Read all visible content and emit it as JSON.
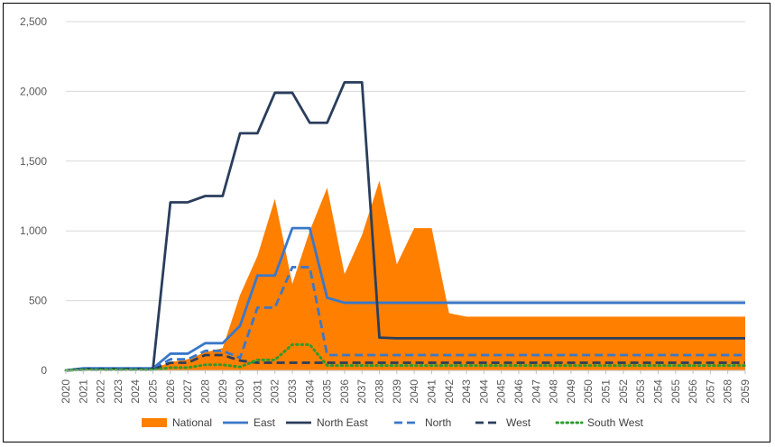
{
  "chart_data": {
    "type": "line",
    "title": "",
    "xlabel": "",
    "ylabel": "",
    "ylim": [
      0,
      2500
    ],
    "y_ticks": [
      0,
      500,
      1000,
      1500,
      2000,
      2500
    ],
    "y_tick_labels": [
      "0",
      "500",
      "1,000",
      "1,500",
      "2,000",
      "2,500"
    ],
    "grid": "horizontal",
    "legend_position": "bottom",
    "x": [
      2020,
      2021,
      2022,
      2023,
      2024,
      2025,
      2026,
      2027,
      2028,
      2029,
      2030,
      2031,
      2032,
      2033,
      2034,
      2035,
      2036,
      2037,
      2038,
      2039,
      2040,
      2041,
      2042,
      2043,
      2044,
      2045,
      2046,
      2047,
      2048,
      2049,
      2050,
      2051,
      2052,
      2053,
      2054,
      2055,
      2056,
      2057,
      2058,
      2059
    ],
    "series": [
      {
        "name": "National",
        "style": "area",
        "color": "#FF7F00",
        "values": [
          0,
          10,
          10,
          10,
          10,
          10,
          60,
          80,
          130,
          160,
          540,
          820,
          1230,
          620,
          1000,
          1310,
          690,
          970,
          1360,
          760,
          1020,
          1020,
          410,
          385,
          385,
          385,
          385,
          385,
          385,
          385,
          385,
          385,
          385,
          385,
          385,
          385,
          385,
          385,
          385,
          385
        ]
      },
      {
        "name": "East",
        "style": "solid",
        "color": "#3A78C9",
        "values": [
          0,
          15,
          15,
          15,
          15,
          15,
          120,
          120,
          195,
          195,
          320,
          680,
          680,
          1020,
          1020,
          520,
          485,
          485,
          485,
          485,
          485,
          485,
          485,
          485,
          485,
          485,
          485,
          485,
          485,
          485,
          485,
          485,
          485,
          485,
          485,
          485,
          485,
          485,
          485,
          485
        ]
      },
      {
        "name": "North East",
        "style": "solid",
        "color": "#2A3E5C",
        "values": [
          0,
          10,
          10,
          10,
          10,
          10,
          1205,
          1205,
          1250,
          1250,
          1700,
          1700,
          1990,
          1990,
          1775,
          1775,
          2065,
          2065,
          235,
          230,
          230,
          230,
          230,
          230,
          230,
          230,
          230,
          230,
          230,
          230,
          230,
          230,
          230,
          230,
          230,
          230,
          230,
          230,
          230,
          230
        ]
      },
      {
        "name": "North",
        "style": "dashed",
        "color": "#3A78C9",
        "values": [
          0,
          10,
          10,
          10,
          10,
          10,
          80,
          80,
          140,
          140,
          90,
          450,
          450,
          740,
          740,
          110,
          110,
          110,
          110,
          110,
          110,
          110,
          110,
          110,
          110,
          110,
          110,
          110,
          110,
          110,
          110,
          110,
          110,
          110,
          110,
          110,
          110,
          110,
          110,
          110
        ]
      },
      {
        "name": "West",
        "style": "dashed",
        "color": "#2A3E5C",
        "values": [
          0,
          5,
          5,
          5,
          5,
          5,
          55,
          55,
          110,
          110,
          70,
          55,
          55,
          55,
          55,
          55,
          55,
          55,
          55,
          55,
          55,
          55,
          55,
          55,
          55,
          55,
          55,
          55,
          55,
          55,
          55,
          55,
          55,
          55,
          55,
          55,
          55,
          55,
          55,
          55
        ]
      },
      {
        "name": "South West",
        "style": "dotted",
        "color": "#2E9B2E",
        "values": [
          0,
          5,
          5,
          5,
          5,
          5,
          20,
          20,
          40,
          40,
          25,
          75,
          75,
          185,
          185,
          35,
          35,
          35,
          35,
          35,
          35,
          35,
          35,
          35,
          35,
          35,
          35,
          35,
          35,
          35,
          35,
          35,
          35,
          35,
          35,
          35,
          35,
          35,
          35,
          35
        ]
      }
    ]
  }
}
